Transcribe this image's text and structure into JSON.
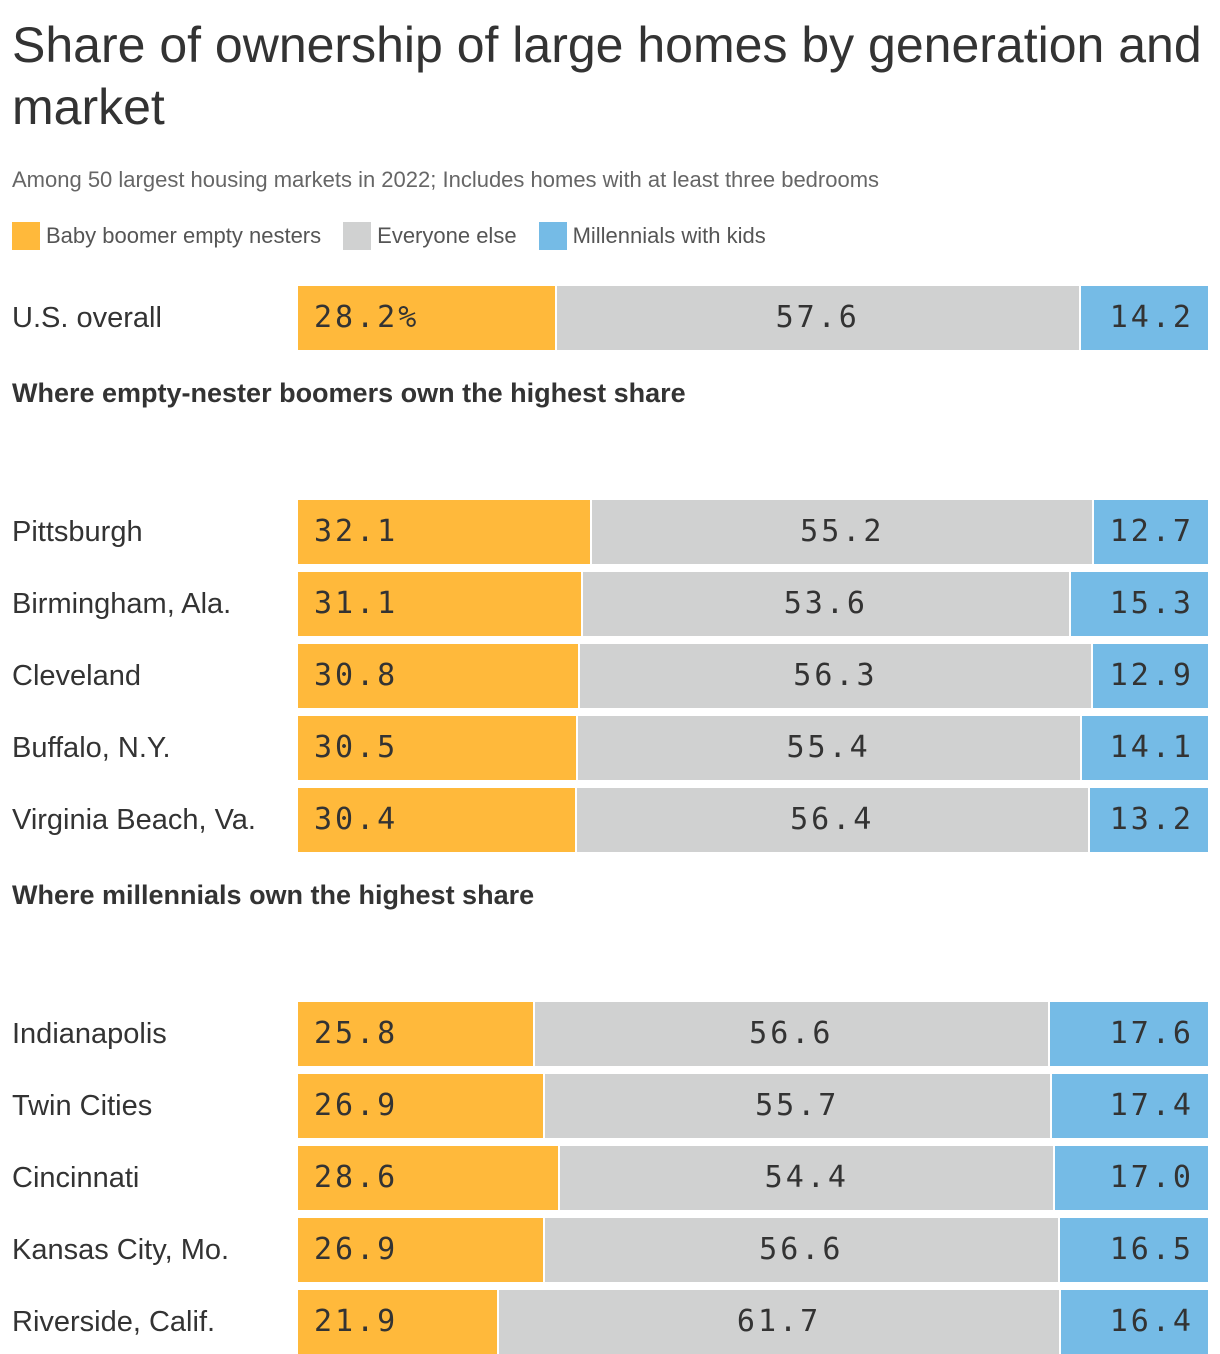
{
  "chart_data": {
    "type": "bar",
    "orientation": "horizontal",
    "stacked": true,
    "title": "Share of ownership of large homes by generation and market",
    "subtitle": "Among 50 largest housing markets in 2022; Includes homes with at least three bedrooms",
    "legend_placement": "top-left",
    "series": [
      {
        "name": "Baby boomer empty nesters",
        "color": "#ffb93b"
      },
      {
        "name": "Everyone else",
        "color": "#d0d1d1"
      },
      {
        "name": "Millennials with kids",
        "color": "#75bbe6"
      }
    ],
    "groups": [
      {
        "heading": "",
        "rows": [
          {
            "label": "U.S. overall",
            "values": [
              28.2,
              57.6,
              14.2
            ],
            "value_labels": [
              "28.2%",
              "57.6",
              "14.2"
            ]
          }
        ]
      },
      {
        "heading": "Where empty-nester boomers own the highest share",
        "rows": [
          {
            "label": "Pittsburgh",
            "values": [
              32.1,
              55.2,
              12.7
            ],
            "value_labels": [
              "32.1",
              "55.2",
              "12.7"
            ]
          },
          {
            "label": "Birmingham, Ala.",
            "values": [
              31.1,
              53.6,
              15.3
            ],
            "value_labels": [
              "31.1",
              "53.6",
              "15.3"
            ]
          },
          {
            "label": "Cleveland",
            "values": [
              30.8,
              56.3,
              12.9
            ],
            "value_labels": [
              "30.8",
              "56.3",
              "12.9"
            ]
          },
          {
            "label": "Buffalo, N.Y.",
            "values": [
              30.5,
              55.4,
              14.1
            ],
            "value_labels": [
              "30.5",
              "55.4",
              "14.1"
            ]
          },
          {
            "label": "Virginia Beach, Va.",
            "values": [
              30.4,
              56.4,
              13.2
            ],
            "value_labels": [
              "30.4",
              "56.4",
              "13.2"
            ]
          }
        ]
      },
      {
        "heading": "Where millennials own the highest share",
        "rows": [
          {
            "label": "Indianapolis",
            "values": [
              25.8,
              56.6,
              17.6
            ],
            "value_labels": [
              "25.8",
              "56.6",
              "17.6"
            ]
          },
          {
            "label": "Twin Cities",
            "values": [
              26.9,
              55.7,
              17.4
            ],
            "value_labels": [
              "26.9",
              "55.7",
              "17.4"
            ]
          },
          {
            "label": "Cincinnati",
            "values": [
              28.6,
              54.4,
              17.0
            ],
            "value_labels": [
              "28.6",
              "54.4",
              "17.0"
            ]
          },
          {
            "label": "Kansas City, Mo.",
            "values": [
              26.9,
              56.6,
              16.5
            ],
            "value_labels": [
              "26.9",
              "56.6",
              "16.5"
            ]
          },
          {
            "label": "Riverside, Calif.",
            "values": [
              21.9,
              61.7,
              16.4
            ],
            "value_labels": [
              "21.9",
              "61.7",
              "16.4"
            ]
          }
        ]
      }
    ]
  }
}
